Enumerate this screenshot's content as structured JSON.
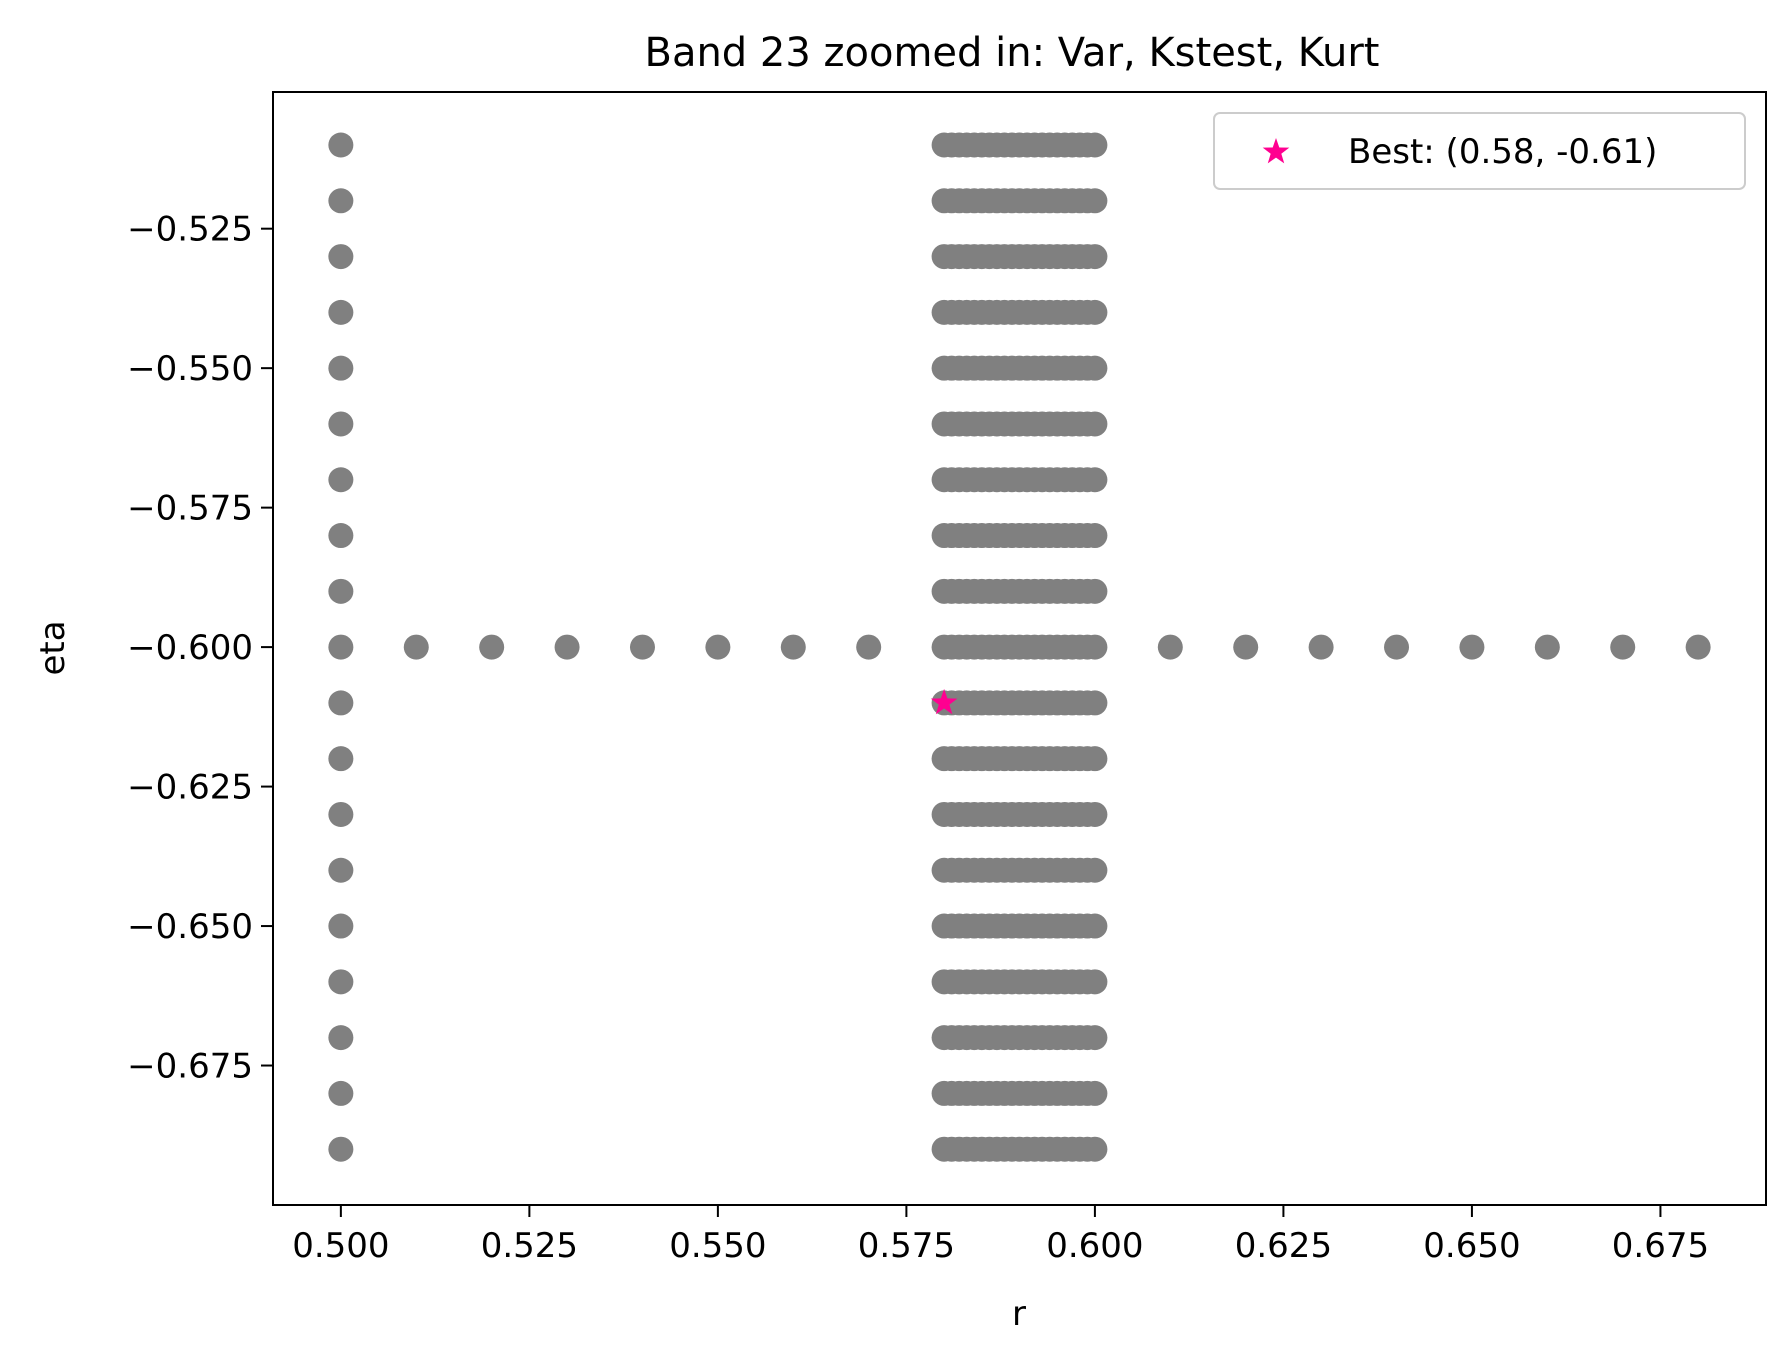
{
  "chart_data": {
    "type": "scatter",
    "title": "Band 23 zoomed in: Var, Kstest, Kurt",
    "xlabel": "r",
    "ylabel": "eta",
    "xlim": [
      0.491,
      0.689
    ],
    "ylim": [
      -0.7,
      -0.5005
    ],
    "x_ticks": [
      0.5,
      0.525,
      0.55,
      0.575,
      0.6,
      0.625,
      0.65,
      0.675
    ],
    "x_tick_labels": [
      "0.500",
      "0.525",
      "0.550",
      "0.575",
      "0.600",
      "0.625",
      "0.650",
      "0.675"
    ],
    "y_ticks": [
      -0.525,
      -0.55,
      -0.575,
      -0.6,
      -0.625,
      -0.65,
      -0.675
    ],
    "y_tick_labels": [
      "−0.525",
      "−0.550",
      "−0.575",
      "−0.600",
      "−0.625",
      "−0.650",
      "−0.675"
    ],
    "grid": false,
    "legend_position": "top-right",
    "point_color": "#808080",
    "best_color": "#ff0090",
    "series": [
      {
        "role": "grid-points",
        "marker": "circle",
        "points": [
          [
            0.5,
            -0.51
          ],
          [
            0.5,
            -0.52
          ],
          [
            0.5,
            -0.53
          ],
          [
            0.5,
            -0.54
          ],
          [
            0.5,
            -0.55
          ],
          [
            0.5,
            -0.56
          ],
          [
            0.5,
            -0.57
          ],
          [
            0.5,
            -0.58
          ],
          [
            0.5,
            -0.59
          ],
          [
            0.5,
            -0.6
          ],
          [
            0.5,
            -0.61
          ],
          [
            0.5,
            -0.62
          ],
          [
            0.5,
            -0.63
          ],
          [
            0.5,
            -0.64
          ],
          [
            0.5,
            -0.65
          ],
          [
            0.5,
            -0.66
          ],
          [
            0.5,
            -0.67
          ],
          [
            0.5,
            -0.68
          ],
          [
            0.5,
            -0.69
          ],
          [
            0.51,
            -0.6
          ],
          [
            0.52,
            -0.6
          ],
          [
            0.53,
            -0.6
          ],
          [
            0.54,
            -0.6
          ],
          [
            0.55,
            -0.6
          ],
          [
            0.56,
            -0.6
          ],
          [
            0.57,
            -0.6
          ],
          [
            0.61,
            -0.6
          ],
          [
            0.62,
            -0.6
          ],
          [
            0.63,
            -0.6
          ],
          [
            0.64,
            -0.6
          ],
          [
            0.65,
            -0.6
          ],
          [
            0.66,
            -0.6
          ],
          [
            0.67,
            -0.6
          ],
          [
            0.68,
            -0.6
          ]
        ]
      },
      {
        "role": "dense-block",
        "marker": "circle",
        "x_range": [
          0.58,
          0.6
        ],
        "x_step": 0.001,
        "y_values": [
          -0.51,
          -0.52,
          -0.53,
          -0.54,
          -0.55,
          -0.56,
          -0.57,
          -0.58,
          -0.59,
          -0.6,
          -0.61,
          -0.62,
          -0.63,
          -0.64,
          -0.65,
          -0.66,
          -0.67,
          -0.68,
          -0.69
        ]
      }
    ],
    "best": {
      "name": "Best: (0.58, -0.61)",
      "marker": "star",
      "x": 0.58,
      "y": -0.61
    }
  }
}
